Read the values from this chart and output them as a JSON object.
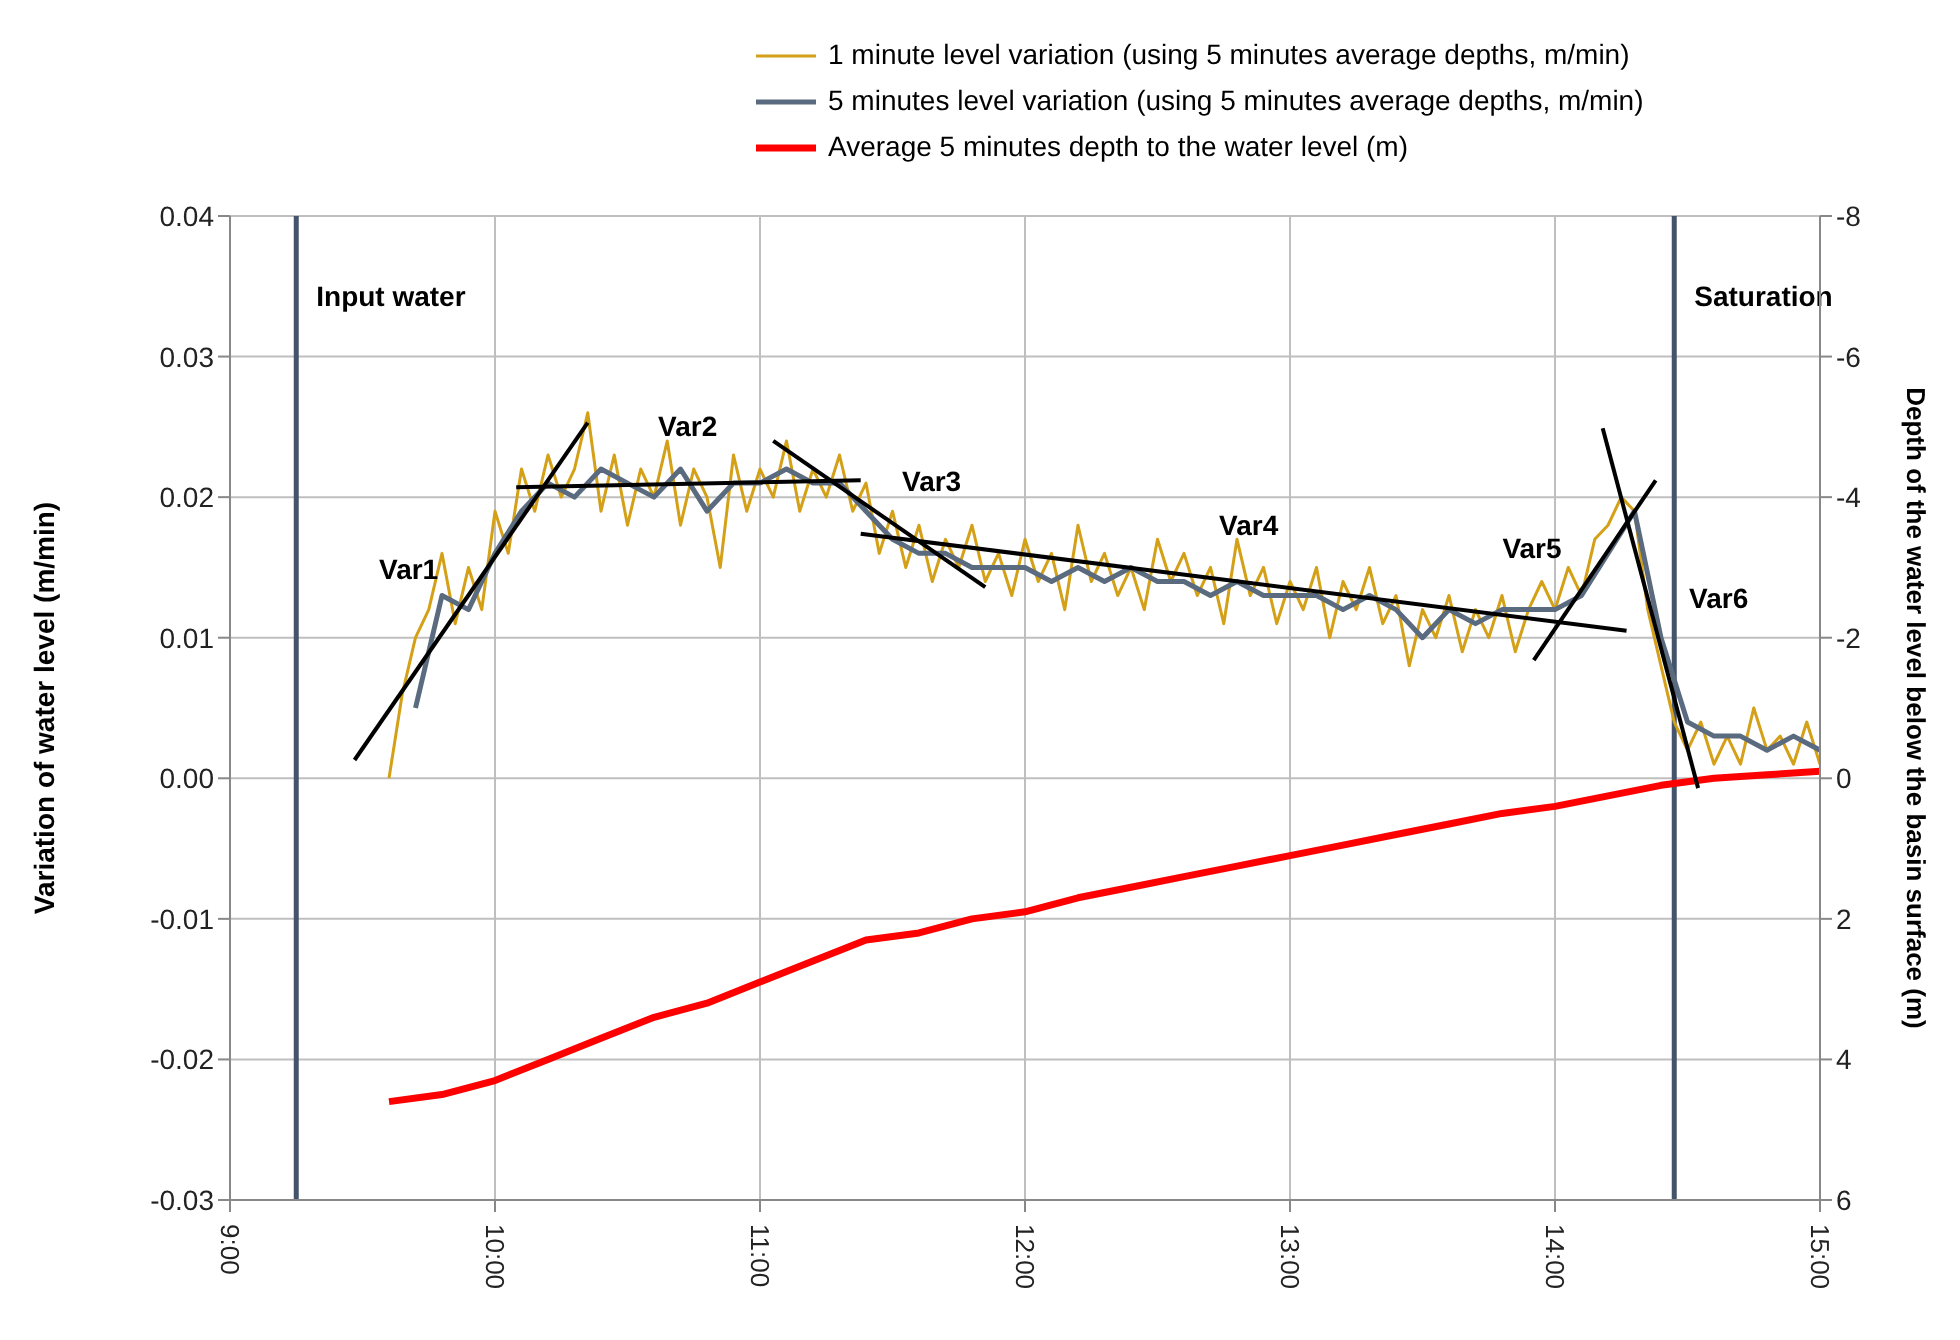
{
  "chart_data": {
    "type": "line",
    "xlabel": null,
    "ylabel": "Variation of water level (m/min)",
    "y2label": "Depth of the water level below the basin surface (m)",
    "xlim": [
      9,
      15
    ],
    "xticks": [
      {
        "value": 9,
        "label": "9:00"
      },
      {
        "value": 10,
        "label": "10:00"
      },
      {
        "value": 11,
        "label": "11:00"
      },
      {
        "value": 12,
        "label": "12:00"
      },
      {
        "value": 13,
        "label": "13:00"
      },
      {
        "value": 14,
        "label": "14:00"
      },
      {
        "value": 15,
        "label": "15:00"
      }
    ],
    "ylim": [
      -0.03,
      0.04
    ],
    "yticks": [
      -0.03,
      -0.02,
      -0.01,
      {
        "value": 0,
        "label": "0.00"
      },
      0.01,
      0.02,
      0.03,
      0.04
    ],
    "y2lim": [
      6,
      -8
    ],
    "y2ticks": [
      6,
      4,
      2,
      0,
      -2,
      -4,
      -6,
      -8
    ],
    "grid": true,
    "legend": "top right",
    "series": [
      {
        "name": "1 minute level variation (using 5 minutes average depths, m/min)",
        "color": "#d4a017",
        "x": [
          9.6,
          9.65,
          9.7,
          9.75,
          9.8,
          9.85,
          9.9,
          9.95,
          10,
          10.05,
          10.1,
          10.15,
          10.2,
          10.25,
          10.3,
          10.35,
          10.4,
          10.45,
          10.5,
          10.55,
          10.6,
          10.65,
          10.7,
          10.75,
          10.8,
          10.85,
          10.9,
          10.95,
          11,
          11.05,
          11.1,
          11.15,
          11.2,
          11.25,
          11.3,
          11.35,
          11.4,
          11.45,
          11.5,
          11.55,
          11.6,
          11.65,
          11.7,
          11.75,
          11.8,
          11.85,
          11.9,
          11.95,
          12,
          12.05,
          12.1,
          12.15,
          12.2,
          12.25,
          12.3,
          12.35,
          12.4,
          12.45,
          12.5,
          12.55,
          12.6,
          12.65,
          12.7,
          12.75,
          12.8,
          12.85,
          12.9,
          12.95,
          13,
          13.05,
          13.1,
          13.15,
          13.2,
          13.25,
          13.3,
          13.35,
          13.4,
          13.45,
          13.5,
          13.55,
          13.6,
          13.65,
          13.7,
          13.75,
          13.8,
          13.85,
          13.9,
          13.95,
          14,
          14.05,
          14.1,
          14.15,
          14.2,
          14.25,
          14.3,
          14.35,
          14.4,
          14.45,
          14.5,
          14.55,
          14.6,
          14.65,
          14.7,
          14.75,
          14.8,
          14.85,
          14.9,
          14.95,
          15
        ],
        "values": [
          0.0,
          0.006,
          0.01,
          0.012,
          0.016,
          0.011,
          0.015,
          0.012,
          0.019,
          0.016,
          0.022,
          0.019,
          0.023,
          0.02,
          0.022,
          0.026,
          0.019,
          0.023,
          0.018,
          0.022,
          0.02,
          0.024,
          0.018,
          0.022,
          0.02,
          0.015,
          0.023,
          0.019,
          0.022,
          0.02,
          0.024,
          0.019,
          0.022,
          0.02,
          0.023,
          0.019,
          0.021,
          0.016,
          0.019,
          0.015,
          0.018,
          0.014,
          0.017,
          0.015,
          0.018,
          0.014,
          0.016,
          0.013,
          0.017,
          0.014,
          0.016,
          0.012,
          0.018,
          0.014,
          0.016,
          0.013,
          0.015,
          0.012,
          0.017,
          0.014,
          0.016,
          0.013,
          0.015,
          0.011,
          0.017,
          0.013,
          0.015,
          0.011,
          0.014,
          0.012,
          0.015,
          0.01,
          0.014,
          0.012,
          0.015,
          0.011,
          0.013,
          0.008,
          0.012,
          0.01,
          0.013,
          0.009,
          0.012,
          0.01,
          0.013,
          0.009,
          0.012,
          0.014,
          0.012,
          0.015,
          0.013,
          0.017,
          0.018,
          0.02,
          0.019,
          0.012,
          0.008,
          0.004,
          0.002,
          0.004,
          0.001,
          0.003,
          0.001,
          0.005,
          0.002,
          0.003,
          0.001,
          0.004,
          0.001
        ]
      },
      {
        "name": "5 minutes level variation (using 5 minutes average depths, m/min)",
        "color": "#5b6b7f",
        "x": [
          9.7,
          9.8,
          9.9,
          10,
          10.1,
          10.2,
          10.3,
          10.4,
          10.5,
          10.6,
          10.7,
          10.8,
          10.9,
          11,
          11.1,
          11.2,
          11.3,
          11.4,
          11.5,
          11.6,
          11.7,
          11.8,
          11.9,
          12,
          12.1,
          12.2,
          12.3,
          12.4,
          12.5,
          12.6,
          12.7,
          12.8,
          12.9,
          13,
          13.1,
          13.2,
          13.3,
          13.4,
          13.5,
          13.6,
          13.7,
          13.8,
          13.9,
          14,
          14.1,
          14.2,
          14.3,
          14.4,
          14.5,
          14.6,
          14.7,
          14.8,
          14.9,
          15
        ],
        "values": [
          0.005,
          0.013,
          0.012,
          0.016,
          0.019,
          0.021,
          0.02,
          0.022,
          0.021,
          0.02,
          0.022,
          0.019,
          0.021,
          0.021,
          0.022,
          0.021,
          0.021,
          0.019,
          0.017,
          0.016,
          0.016,
          0.015,
          0.015,
          0.015,
          0.014,
          0.015,
          0.014,
          0.015,
          0.014,
          0.014,
          0.013,
          0.014,
          0.013,
          0.013,
          0.013,
          0.012,
          0.013,
          0.012,
          0.01,
          0.012,
          0.011,
          0.012,
          0.012,
          0.012,
          0.013,
          0.016,
          0.019,
          0.01,
          0.004,
          0.003,
          0.003,
          0.002,
          0.003,
          0.002
        ]
      },
      {
        "name": "Average 5 minutes depth to the water level (m)",
        "color": "#ff0000",
        "axis": "y2",
        "x": [
          9.6,
          9.8,
          10,
          10.2,
          10.4,
          10.6,
          10.8,
          11,
          11.2,
          11.4,
          11.6,
          11.8,
          12,
          12.2,
          12.4,
          12.6,
          12.8,
          13,
          13.2,
          13.4,
          13.6,
          13.8,
          14,
          14.2,
          14.4,
          14.5,
          14.6,
          14.8,
          15
        ],
        "values": [
          4.6,
          4.5,
          4.3,
          4.0,
          3.7,
          3.4,
          3.2,
          2.9,
          2.6,
          2.3,
          2.2,
          2.0,
          1.9,
          1.7,
          1.55,
          1.4,
          1.25,
          1.1,
          0.95,
          0.8,
          0.65,
          0.5,
          0.4,
          0.25,
          0.1,
          0.05,
          0.0,
          -0.05,
          -0.1
        ]
      },
      {
        "type": "line",
        "color": "#000000",
        "x": [
          9.47,
          10.35
        ],
        "values": [
          0.0013,
          0.0253
        ]
      },
      {
        "type": "line",
        "color": "#000000",
        "x": [
          10.08,
          11.38
        ],
        "values": [
          0.0207,
          0.0212
        ]
      },
      {
        "type": "line",
        "color": "#000000",
        "x": [
          11.05,
          11.85
        ],
        "values": [
          0.024,
          0.0136
        ]
      },
      {
        "type": "line",
        "color": "#000000",
        "x": [
          11.38,
          14.27
        ],
        "values": [
          0.0174,
          0.0105
        ]
      },
      {
        "type": "line",
        "color": "#000000",
        "x": [
          13.92,
          14.38
        ],
        "values": [
          0.0084,
          0.0212
        ]
      },
      {
        "type": "line",
        "color": "#000000",
        "x": [
          14.18,
          14.54
        ],
        "values": [
          0.0249,
          -0.0007
        ]
      }
    ],
    "annotations": [
      "Var1",
      "Var2",
      "Var3",
      "Var4",
      "Var5",
      "Var6"
    ],
    "ref_lines": [
      {
        "axis": "x",
        "value": 9.25,
        "label": "Input water",
        "color": "#44546a"
      },
      {
        "axis": "x",
        "value": 14.45,
        "label": "Saturation",
        "color": "#44546a"
      }
    ]
  }
}
